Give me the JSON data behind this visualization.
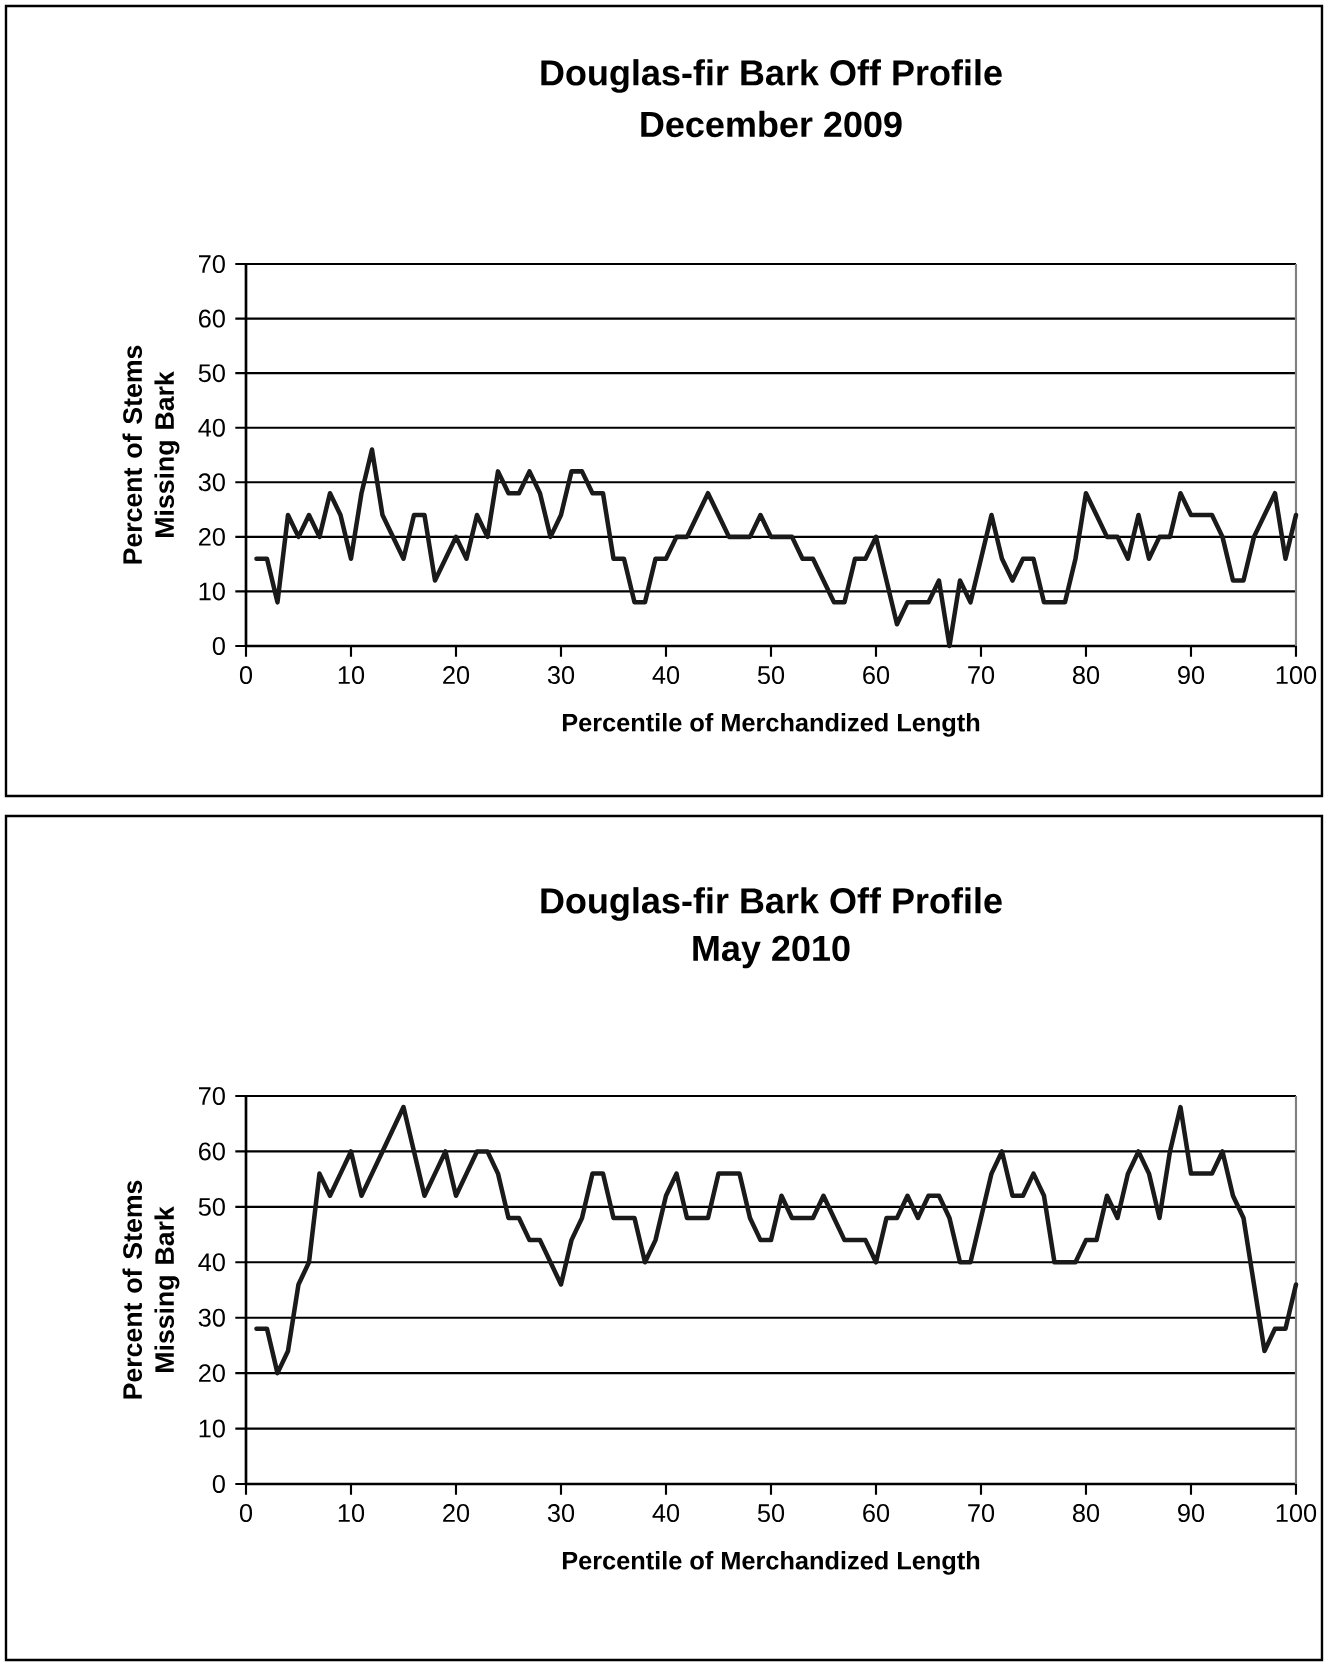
{
  "chart_data": [
    {
      "type": "line",
      "title": "Douglas-fir Bark Off Profile",
      "subtitle": "December 2009",
      "xlabel": "Percentile of Merchandized Length",
      "ylabel": "Percent of Stems Missing Bark",
      "xlim": [
        0,
        100
      ],
      "xticks": [
        0,
        10,
        20,
        30,
        40,
        50,
        60,
        70,
        80,
        90,
        100
      ],
      "ylim": [
        0,
        70
      ],
      "yticks": [
        0,
        10,
        20,
        30,
        40,
        50,
        60,
        70
      ],
      "grid": "y",
      "series": [
        {
          "color": "#1a1a1a",
          "x": [
            1,
            2,
            3,
            4,
            5,
            6,
            7,
            8,
            9,
            10,
            11,
            12,
            13,
            14,
            15,
            16,
            17,
            18,
            19,
            20,
            21,
            22,
            23,
            24,
            25,
            26,
            27,
            28,
            29,
            30,
            31,
            32,
            33,
            34,
            35,
            36,
            37,
            38,
            39,
            40,
            41,
            42,
            43,
            44,
            45,
            46,
            47,
            48,
            49,
            50,
            51,
            52,
            53,
            54,
            55,
            56,
            57,
            58,
            59,
            60,
            61,
            62,
            63,
            64,
            65,
            66,
            67,
            68,
            69,
            70,
            71,
            72,
            73,
            74,
            75,
            76,
            77,
            78,
            79,
            80,
            81,
            82,
            83,
            84,
            85,
            86,
            87,
            88,
            89,
            90,
            91,
            92,
            93,
            94,
            95,
            96,
            97,
            98,
            99,
            100
          ],
          "values": [
            16,
            16,
            8,
            24,
            20,
            24,
            20,
            28,
            24,
            16,
            28,
            36,
            24,
            20,
            16,
            24,
            24,
            12,
            16,
            20,
            16,
            24,
            20,
            32,
            28,
            28,
            32,
            28,
            20,
            24,
            32,
            32,
            28,
            28,
            16,
            16,
            8,
            8,
            16,
            16,
            20,
            20,
            24,
            28,
            24,
            20,
            20,
            20,
            24,
            20,
            20,
            20,
            16,
            16,
            12,
            8,
            8,
            16,
            16,
            20,
            12,
            4,
            8,
            8,
            8,
            12,
            0,
            12,
            8,
            16,
            24,
            16,
            12,
            16,
            16,
            8,
            8,
            8,
            16,
            28,
            24,
            20,
            20,
            16,
            24,
            16,
            20,
            20,
            28,
            24,
            24,
            24,
            20,
            12,
            12,
            20,
            24,
            28,
            16,
            24
          ]
        }
      ]
    },
    {
      "type": "line",
      "title": "Douglas-fir Bark Off Profile",
      "subtitle": "May 2010",
      "xlabel": "Percentile of Merchandized Length",
      "ylabel": "Percent of Stems Missing Bark",
      "xlim": [
        0,
        100
      ],
      "xticks": [
        0,
        10,
        20,
        30,
        40,
        50,
        60,
        70,
        80,
        90,
        100
      ],
      "ylim": [
        0,
        70
      ],
      "yticks": [
        0,
        10,
        20,
        30,
        40,
        50,
        60,
        70
      ],
      "grid": "y",
      "series": [
        {
          "color": "#1a1a1a",
          "x": [
            1,
            2,
            3,
            4,
            5,
            6,
            7,
            8,
            9,
            10,
            11,
            12,
            13,
            14,
            15,
            16,
            17,
            18,
            19,
            20,
            21,
            22,
            23,
            24,
            25,
            26,
            27,
            28,
            29,
            30,
            31,
            32,
            33,
            34,
            35,
            36,
            37,
            38,
            39,
            40,
            41,
            42,
            43,
            44,
            45,
            46,
            47,
            48,
            49,
            50,
            51,
            52,
            53,
            54,
            55,
            56,
            57,
            58,
            59,
            60,
            61,
            62,
            63,
            64,
            65,
            66,
            67,
            68,
            69,
            70,
            71,
            72,
            73,
            74,
            75,
            76,
            77,
            78,
            79,
            80,
            81,
            82,
            83,
            84,
            85,
            86,
            87,
            88,
            89,
            90,
            91,
            92,
            93,
            94,
            95,
            96,
            97,
            98,
            99,
            100
          ],
          "values": [
            28,
            28,
            20,
            24,
            36,
            40,
            56,
            52,
            56,
            60,
            52,
            56,
            60,
            64,
            68,
            60,
            52,
            56,
            60,
            52,
            56,
            60,
            60,
            56,
            48,
            48,
            44,
            44,
            40,
            36,
            44,
            48,
            56,
            56,
            48,
            48,
            48,
            40,
            44,
            52,
            56,
            48,
            48,
            48,
            56,
            56,
            56,
            48,
            44,
            44,
            52,
            48,
            48,
            48,
            52,
            48,
            44,
            44,
            44,
            40,
            48,
            48,
            52,
            48,
            52,
            52,
            48,
            40,
            40,
            48,
            56,
            60,
            52,
            52,
            56,
            52,
            40,
            40,
            40,
            44,
            44,
            52,
            48,
            56,
            60,
            56,
            48,
            60,
            68,
            56,
            56,
            56,
            60,
            52,
            48,
            36,
            24,
            28,
            28,
            36
          ]
        }
      ]
    }
  ]
}
